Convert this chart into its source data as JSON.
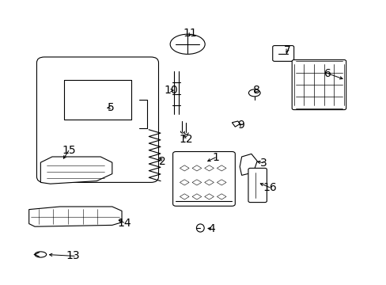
{
  "title": "",
  "background_color": "#ffffff",
  "line_color": "#000000",
  "text_color": "#000000",
  "fig_width": 4.89,
  "fig_height": 3.6,
  "dpi": 100,
  "font_size": 10,
  "lw": 0.8
}
